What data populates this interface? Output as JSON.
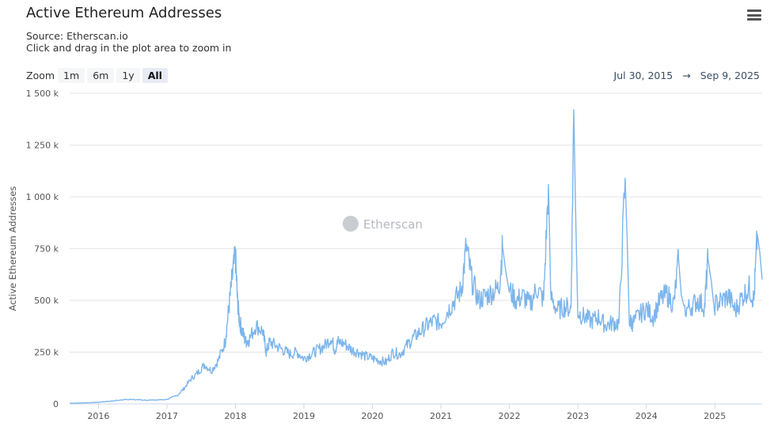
{
  "header": {
    "title": "Active Ethereum Addresses",
    "source": "Source: Etherscan.io",
    "hint": "Click and drag in the plot area to zoom in"
  },
  "zoom": {
    "label": "Zoom",
    "buttons": [
      "1m",
      "6m",
      "1y",
      "All"
    ],
    "active": "All"
  },
  "range": {
    "from": "Jul 30, 2015",
    "arrow": "→",
    "to": "Sep 9, 2025"
  },
  "watermark": "Etherscan",
  "colors": {
    "series": "#7cb5ec",
    "grid": "#e6e6e6",
    "axis": "#ccd6eb"
  },
  "chart_data": {
    "type": "line",
    "title": "Active Ethereum Addresses",
    "ylabel": "Active Ethereum Addresses",
    "xlabel": "",
    "xlim": [
      2015.58,
      2025.69
    ],
    "ylim": [
      0,
      1500000
    ],
    "y_ticks": [
      0,
      250000,
      500000,
      750000,
      1000000,
      1250000,
      1500000
    ],
    "y_tick_labels": [
      "0",
      "250 k",
      "500 k",
      "750 k",
      "1 000 k",
      "1 250 k",
      "1 500 k"
    ],
    "x_ticks": [
      2016,
      2017,
      2018,
      2019,
      2020,
      2021,
      2022,
      2023,
      2024,
      2025
    ],
    "x_tick_labels": [
      "2016",
      "2017",
      "2018",
      "2019",
      "2020",
      "2021",
      "2022",
      "2023",
      "2024",
      "2025"
    ],
    "grid": true,
    "legend": "none",
    "series": [
      {
        "x": [
          2015.58,
          2015.8,
          2016.0,
          2016.2,
          2016.4,
          2016.6,
          2016.8,
          2017.0,
          2017.15,
          2017.25,
          2017.35,
          2017.45,
          2017.55,
          2017.65,
          2017.75,
          2017.85,
          2017.9,
          2017.95,
          2018.0,
          2018.03,
          2018.06,
          2018.1,
          2018.15,
          2018.2,
          2018.3,
          2018.4,
          2018.45,
          2018.5,
          2018.6,
          2018.7,
          2018.8,
          2018.9,
          2019.0,
          2019.1,
          2019.2,
          2019.3,
          2019.4,
          2019.45,
          2019.5,
          2019.6,
          2019.7,
          2019.8,
          2019.9,
          2020.0,
          2020.1,
          2020.2,
          2020.3,
          2020.4,
          2020.5,
          2020.6,
          2020.7,
          2020.8,
          2020.9,
          2021.0,
          2021.1,
          2021.2,
          2021.3,
          2021.37,
          2021.45,
          2021.55,
          2021.65,
          2021.75,
          2021.85,
          2021.9,
          2022.0,
          2022.1,
          2022.2,
          2022.3,
          2022.4,
          2022.5,
          2022.57,
          2022.6,
          2022.7,
          2022.8,
          2022.9,
          2022.94,
          2023.0,
          2023.1,
          2023.2,
          2023.3,
          2023.4,
          2023.5,
          2023.6,
          2023.69,
          2023.75,
          2023.8,
          2023.9,
          2024.0,
          2024.1,
          2024.2,
          2024.3,
          2024.4,
          2024.47,
          2024.55,
          2024.65,
          2024.75,
          2024.85,
          2024.9,
          2025.0,
          2025.1,
          2025.2,
          2025.3,
          2025.4,
          2025.5,
          2025.57,
          2025.62,
          2025.69
        ],
        "y": [
          3000,
          5000,
          8000,
          14000,
          22000,
          20000,
          18000,
          22000,
          40000,
          75000,
          120000,
          150000,
          190000,
          160000,
          210000,
          300000,
          450000,
          600000,
          720000,
          500000,
          400000,
          350000,
          300000,
          310000,
          380000,
          350000,
          250000,
          300000,
          280000,
          260000,
          240000,
          250000,
          220000,
          240000,
          260000,
          280000,
          320000,
          260000,
          300000,
          290000,
          260000,
          250000,
          230000,
          220000,
          210000,
          200000,
          250000,
          240000,
          280000,
          320000,
          350000,
          380000,
          400000,
          390000,
          450000,
          500000,
          550000,
          760000,
          600000,
          500000,
          520000,
          540000,
          560000,
          760000,
          550000,
          500000,
          520000,
          480000,
          560000,
          500000,
          1060000,
          520000,
          450000,
          470000,
          460000,
          1420000,
          440000,
          420000,
          400000,
          420000,
          380000,
          390000,
          390000,
          1090000,
          400000,
          390000,
          430000,
          460000,
          420000,
          500000,
          530000,
          480000,
          700000,
          450000,
          470000,
          500000,
          470000,
          700000,
          480000,
          500000,
          520000,
          450000,
          520000,
          560000,
          500000,
          820000,
          600000
        ]
      }
    ]
  }
}
